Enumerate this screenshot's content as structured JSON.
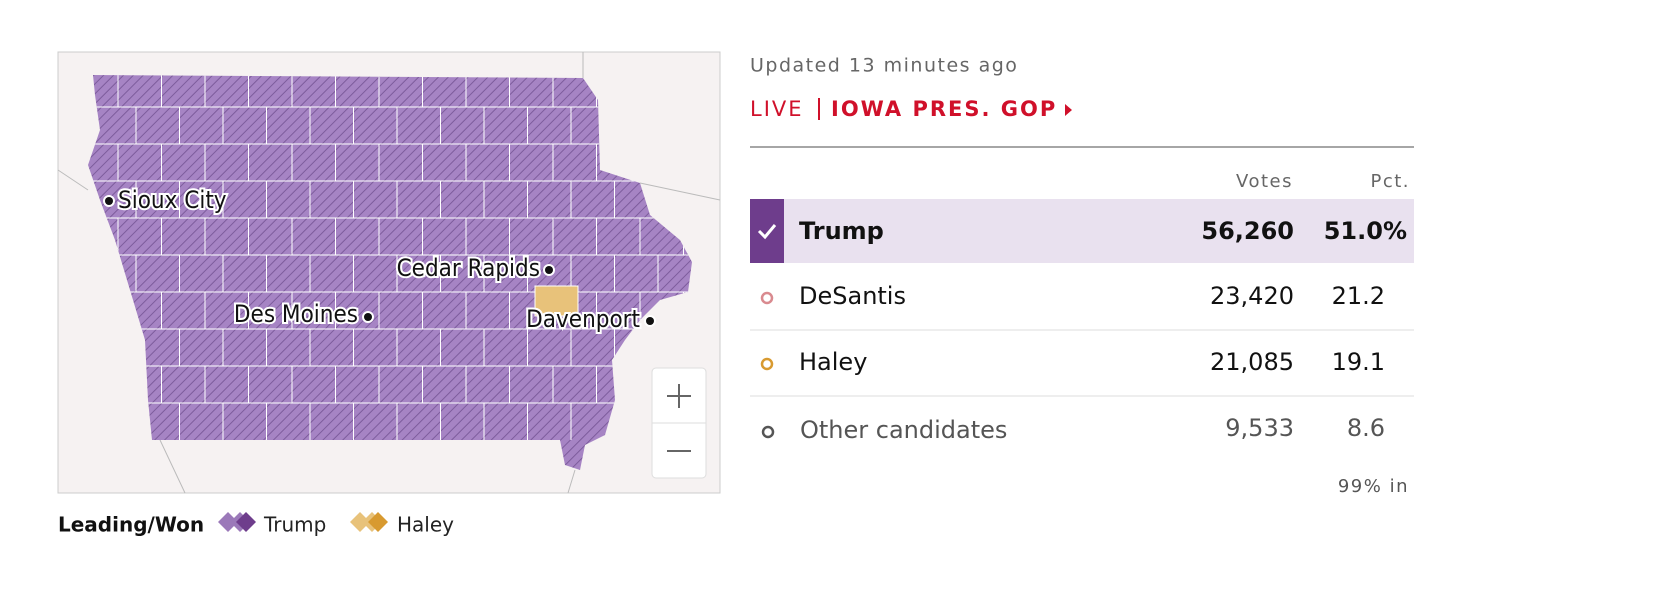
{
  "header": {
    "updated": "Updated 13 minutes ago",
    "live": "LIVE",
    "race": "IOWA PRES. GOP"
  },
  "map": {
    "cities": [
      "Sioux City",
      "Cedar Rapids",
      "Des Moines",
      "Davenport"
    ]
  },
  "legend": {
    "title": "Leading/Won",
    "items": [
      "Trump",
      "Haley"
    ]
  },
  "table": {
    "columns": [
      "Votes",
      "Pct."
    ],
    "rows": [
      [
        "Trump",
        "56,260",
        "51.0%"
      ],
      [
        "DeSantis",
        "23,420",
        "21.2"
      ],
      [
        "Haley",
        "21,085",
        "19.1"
      ],
      [
        "Other candidates",
        "9,533",
        "8.6"
      ]
    ]
  },
  "footer": "99% in"
}
